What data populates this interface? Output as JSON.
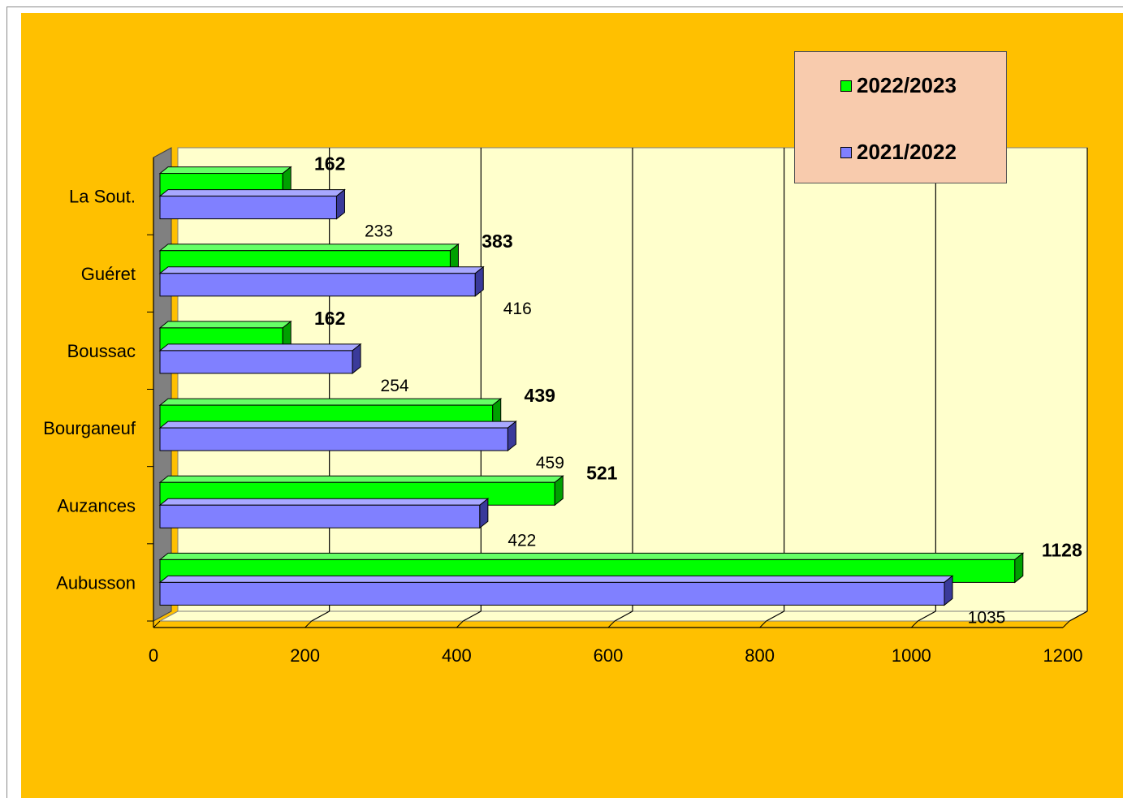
{
  "chart_data": {
    "type": "bar",
    "orientation": "horizontal",
    "style": "3d",
    "categories": [
      "Aubusson",
      "Auzances",
      "Bourganeuf",
      "Boussac",
      "Guéret",
      "La Sout."
    ],
    "series": [
      {
        "name": "2022/2023",
        "color": "#00FF00",
        "values": [
          1128,
          521,
          439,
          162,
          383,
          162
        ]
      },
      {
        "name": "2021/2022",
        "color": "#8080FF",
        "values": [
          1035,
          422,
          459,
          254,
          416,
          233
        ]
      }
    ],
    "x_ticks": [
      "0",
      "200",
      "400",
      "600",
      "800",
      "1000",
      "1200"
    ],
    "xlim": [
      0,
      1200
    ],
    "grid": true,
    "legend": "top-right",
    "colors": {
      "background": "#FFC000",
      "plot": "#FFFFCC",
      "legend_bg": "#F8CBAD"
    }
  }
}
